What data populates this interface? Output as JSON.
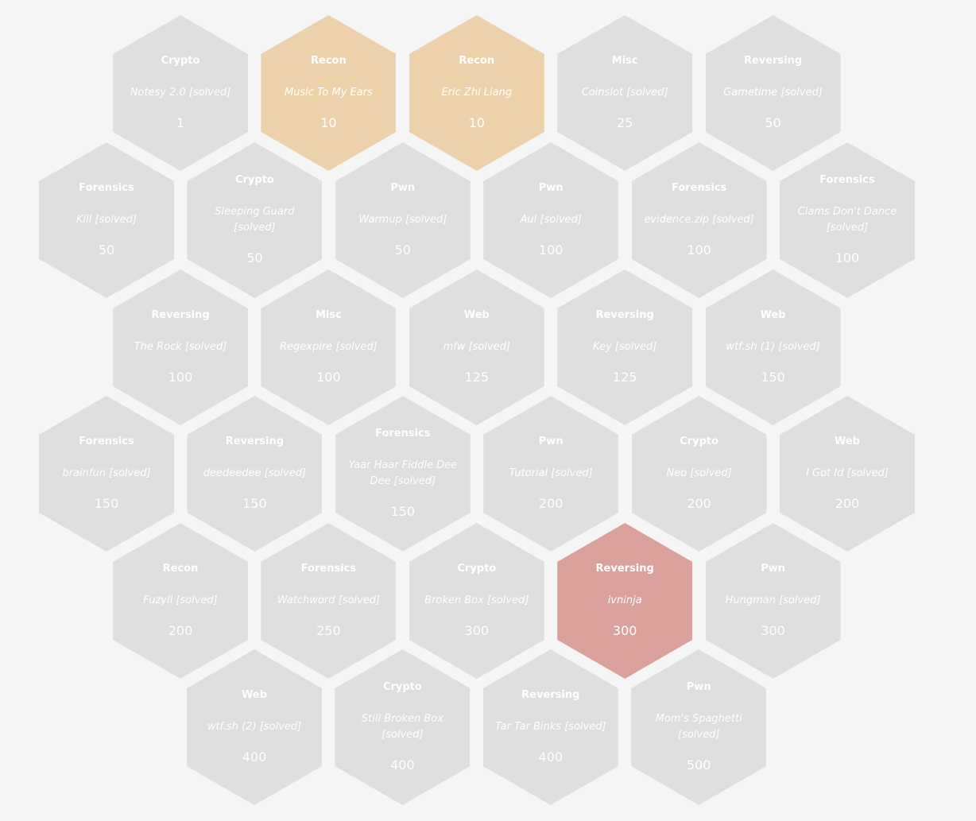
{
  "colors": {
    "background": "#f5f5f5",
    "solved": "#dfdfdf",
    "open_recon": "#edd1aa",
    "open_reversing": "#d9a09c",
    "text": "#ffffff"
  },
  "challenges": [
    {
      "category": "Crypto",
      "name": "Notesy 2.0 [solved]",
      "points": "1",
      "status": "solved"
    },
    {
      "category": "Recon",
      "name": "Music To My Ears",
      "points": "10",
      "status": "open-recon"
    },
    {
      "category": "Recon",
      "name": "Eric Zhi Liang",
      "points": "10",
      "status": "open-recon"
    },
    {
      "category": "Misc",
      "name": "Coinslot [solved]",
      "points": "25",
      "status": "solved"
    },
    {
      "category": "Reversing",
      "name": "Gametime [solved]",
      "points": "50",
      "status": "solved"
    },
    {
      "category": "Forensics",
      "name": "Kill [solved]",
      "points": "50",
      "status": "solved"
    },
    {
      "category": "Crypto",
      "name": "Sleeping Guard [solved]",
      "points": "50",
      "status": "solved"
    },
    {
      "category": "Pwn",
      "name": "Warmup [solved]",
      "points": "50",
      "status": "solved"
    },
    {
      "category": "Pwn",
      "name": "Aul [solved]",
      "points": "100",
      "status": "solved"
    },
    {
      "category": "Forensics",
      "name": "evidence.zip [solved]",
      "points": "100",
      "status": "solved"
    },
    {
      "category": "Forensics",
      "name": "Clams Don't Dance [solved]",
      "points": "100",
      "status": "solved"
    },
    {
      "category": "Reversing",
      "name": "The Rock [solved]",
      "points": "100",
      "status": "solved"
    },
    {
      "category": "Misc",
      "name": "Regexpire [solved]",
      "points": "100",
      "status": "solved"
    },
    {
      "category": "Web",
      "name": "mfw [solved]",
      "points": "125",
      "status": "solved"
    },
    {
      "category": "Reversing",
      "name": "Key [solved]",
      "points": "125",
      "status": "solved"
    },
    {
      "category": "Web",
      "name": "wtf.sh (1) [solved]",
      "points": "150",
      "status": "solved"
    },
    {
      "category": "Forensics",
      "name": "brainfun [solved]",
      "points": "150",
      "status": "solved"
    },
    {
      "category": "Reversing",
      "name": "deedeedee [solved]",
      "points": "150",
      "status": "solved"
    },
    {
      "category": "Forensics",
      "name": "Yaar Haar Fiddle Dee Dee [solved]",
      "points": "150",
      "status": "solved"
    },
    {
      "category": "Pwn",
      "name": "Tutorial [solved]",
      "points": "200",
      "status": "solved"
    },
    {
      "category": "Crypto",
      "name": "Neo [solved]",
      "points": "200",
      "status": "solved"
    },
    {
      "category": "Web",
      "name": "I Got Id [solved]",
      "points": "200",
      "status": "solved"
    },
    {
      "category": "Recon",
      "name": "Fuzyll [solved]",
      "points": "200",
      "status": "solved"
    },
    {
      "category": "Forensics",
      "name": "Watchword [solved]",
      "points": "250",
      "status": "solved"
    },
    {
      "category": "Crypto",
      "name": "Broken Box [solved]",
      "points": "300",
      "status": "solved"
    },
    {
      "category": "Reversing",
      "name": "ivninja",
      "points": "300",
      "status": "open-rev"
    },
    {
      "category": "Pwn",
      "name": "Hungman [solved]",
      "points": "300",
      "status": "solved"
    },
    {
      "category": "Web",
      "name": "wtf.sh (2) [solved]",
      "points": "400",
      "status": "solved"
    },
    {
      "category": "Crypto",
      "name": "Still Broken Box [solved]",
      "points": "400",
      "status": "solved"
    },
    {
      "category": "Reversing",
      "name": "Tar Tar Binks [solved]",
      "points": "400",
      "status": "solved"
    },
    {
      "category": "Pwn",
      "name": "Mom's Spaghetti [solved]",
      "points": "500",
      "status": "solved"
    }
  ]
}
